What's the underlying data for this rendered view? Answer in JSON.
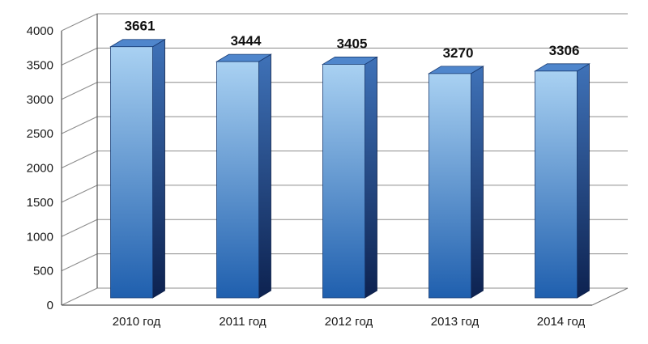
{
  "chart_data": {
    "type": "bar",
    "title": "",
    "xlabel": "",
    "ylabel": "",
    "categories": [
      "2010 год",
      "2011 год",
      "2012 год",
      "2013 год",
      "2014 год"
    ],
    "values": [
      3661,
      3444,
      3405,
      3270,
      3306
    ],
    "data_labels": [
      "3661",
      "3444",
      "3405",
      "3270",
      "3306"
    ],
    "ylim": [
      0,
      4000
    ],
    "yticks": [
      0,
      500,
      1000,
      1500,
      2000,
      2500,
      3000,
      3500,
      4000
    ],
    "ytick_labels": [
      "0",
      "500",
      "1000",
      "1500",
      "2000",
      "2500",
      "3000",
      "3500",
      "4000"
    ],
    "grid": true,
    "legend": "none",
    "style": "3d-column",
    "colors": {
      "bar_front_light": "#a9d1f2",
      "bar_front_dark": "#1f5fae",
      "bar_side_light": "#3f72b8",
      "bar_side_dark": "#0d2250",
      "bar_top": "#4f86cc",
      "grid": "#8c8c8c"
    }
  }
}
